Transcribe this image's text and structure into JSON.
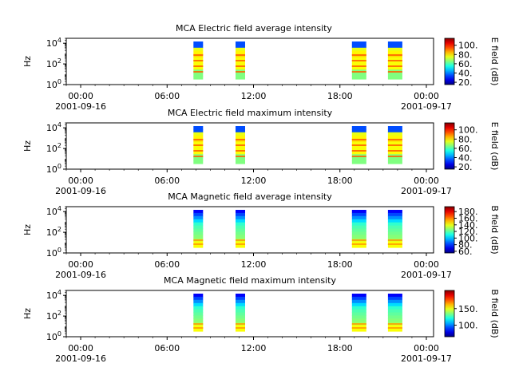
{
  "chart_data": [
    {
      "type": "heatmap",
      "title": "MCA  Electric field average intensity",
      "ylabel": "Hz",
      "yscale": "log",
      "ylim": [
        1,
        30000
      ],
      "yticks": [
        "10^0",
        "10^2",
        "10^4"
      ],
      "xticks": [
        {
          "time": "00:00",
          "date": "2001-09-16"
        },
        {
          "time": "06:00",
          "date": ""
        },
        {
          "time": "12:00",
          "date": ""
        },
        {
          "time": "18:00",
          "date": ""
        },
        {
          "time": "00:00",
          "date": "2001-09-17"
        }
      ],
      "xlim": [
        "2001-09-15T23:00",
        "2001-09-17T00:30"
      ],
      "colorbar": {
        "label": "E field (dB)",
        "ticks": [
          20,
          40,
          60,
          80,
          100
        ],
        "range": [
          15,
          115
        ]
      },
      "data_intervals": [
        {
          "start": "2001-09-16T07:50",
          "end": "2001-09-16T08:30"
        },
        {
          "start": "2001-09-16T10:45",
          "end": "2001-09-16T11:25"
        },
        {
          "start": "2001-09-16T18:50",
          "end": "2001-09-16T19:50"
        },
        {
          "start": "2001-09-16T21:20",
          "end": "2001-09-16T22:20"
        }
      ]
    },
    {
      "type": "heatmap",
      "title": "MCA  Electric field maximum intensity",
      "ylabel": "Hz",
      "yscale": "log",
      "ylim": [
        1,
        30000
      ],
      "yticks": [
        "10^0",
        "10^2",
        "10^4"
      ],
      "xticks": [
        {
          "time": "00:00",
          "date": "2001-09-16"
        },
        {
          "time": "06:00",
          "date": ""
        },
        {
          "time": "12:00",
          "date": ""
        },
        {
          "time": "18:00",
          "date": ""
        },
        {
          "time": "00:00",
          "date": "2001-09-17"
        }
      ],
      "xlim": [
        "2001-09-15T23:00",
        "2001-09-17T00:30"
      ],
      "colorbar": {
        "label": "E field (dB)",
        "ticks": [
          20,
          40,
          60,
          80,
          100
        ],
        "range": [
          15,
          115
        ]
      },
      "data_intervals": [
        {
          "start": "2001-09-16T07:50",
          "end": "2001-09-16T08:30"
        },
        {
          "start": "2001-09-16T10:45",
          "end": "2001-09-16T11:25"
        },
        {
          "start": "2001-09-16T18:50",
          "end": "2001-09-16T19:50"
        },
        {
          "start": "2001-09-16T21:20",
          "end": "2001-09-16T22:20"
        }
      ]
    },
    {
      "type": "heatmap",
      "title": "MCA  Magnetic field average intensity",
      "ylabel": "Hz",
      "yscale": "log",
      "ylim": [
        1,
        30000
      ],
      "yticks": [
        "10^0",
        "10^2",
        "10^4"
      ],
      "xticks": [
        {
          "time": "00:00",
          "date": "2001-09-16"
        },
        {
          "time": "06:00",
          "date": ""
        },
        {
          "time": "12:00",
          "date": ""
        },
        {
          "time": "18:00",
          "date": ""
        },
        {
          "time": "00:00",
          "date": "2001-09-17"
        }
      ],
      "xlim": [
        "2001-09-15T23:00",
        "2001-09-17T00:30"
      ],
      "colorbar": {
        "label": "B field (dB)",
        "ticks": [
          60,
          80,
          100,
          120,
          140,
          160,
          180
        ],
        "range": [
          55,
          195
        ]
      },
      "data_intervals": [
        {
          "start": "2001-09-16T07:50",
          "end": "2001-09-16T08:30"
        },
        {
          "start": "2001-09-16T10:45",
          "end": "2001-09-16T11:25"
        },
        {
          "start": "2001-09-16T18:50",
          "end": "2001-09-16T19:50"
        },
        {
          "start": "2001-09-16T21:20",
          "end": "2001-09-16T22:20"
        }
      ]
    },
    {
      "type": "heatmap",
      "title": "MCA  Magnetic field maximum intensity",
      "ylabel": "Hz",
      "yscale": "log",
      "ylim": [
        1,
        30000
      ],
      "yticks": [
        "10^0",
        "10^2",
        "10^4"
      ],
      "xticks": [
        {
          "time": "00:00",
          "date": "2001-09-16"
        },
        {
          "time": "06:00",
          "date": ""
        },
        {
          "time": "12:00",
          "date": ""
        },
        {
          "time": "18:00",
          "date": ""
        },
        {
          "time": "00:00",
          "date": "2001-09-17"
        }
      ],
      "xlim": [
        "2001-09-15T23:00",
        "2001-09-17T00:30"
      ],
      "colorbar": {
        "label": "B field (dB)",
        "ticks": [
          100,
          150
        ],
        "range": [
          65,
          205
        ]
      },
      "data_intervals": [
        {
          "start": "2001-09-16T07:50",
          "end": "2001-09-16T08:30"
        },
        {
          "start": "2001-09-16T10:45",
          "end": "2001-09-16T11:25"
        },
        {
          "start": "2001-09-16T18:50",
          "end": "2001-09-16T19:50"
        },
        {
          "start": "2001-09-16T21:20",
          "end": "2001-09-16T22:20"
        }
      ]
    }
  ]
}
